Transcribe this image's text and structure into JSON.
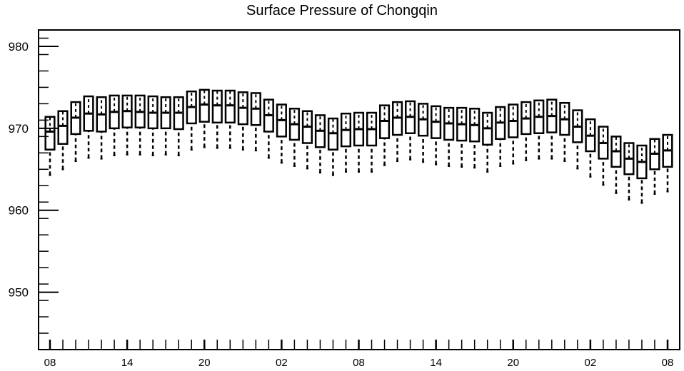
{
  "chart_data": {
    "type": "box",
    "title": "Surface Pressure of Chongqin",
    "xlabel": "",
    "ylabel": "",
    "ylim": [
      943,
      982
    ],
    "y_ticks": [
      950,
      960,
      970,
      980
    ],
    "x_tick_labels": [
      "08",
      "14",
      "20",
      "02",
      "08",
      "14",
      "20",
      "02",
      "08"
    ],
    "x_tick_positions": [
      0,
      6,
      12,
      18,
      24,
      30,
      36,
      42,
      48
    ],
    "grid": false,
    "boxes": [
      {
        "x": 0,
        "whisker_low": 964.3,
        "q1": 967.4,
        "median": 969.6,
        "q3": 971.4,
        "whisker_high": 971.4
      },
      {
        "x": 1,
        "whisker_low": 965.0,
        "q1": 968.1,
        "median": 970.3,
        "q3": 972.1,
        "whisker_high": 972.1
      },
      {
        "x": 2,
        "whisker_low": 966.0,
        "q1": 969.3,
        "median": 971.3,
        "q3": 973.2,
        "whisker_high": 973.2
      },
      {
        "x": 3,
        "whisker_low": 966.4,
        "q1": 969.7,
        "median": 971.8,
        "q3": 973.9,
        "whisker_high": 973.9
      },
      {
        "x": 4,
        "whisker_low": 966.3,
        "q1": 969.6,
        "median": 971.7,
        "q3": 973.8,
        "whisker_high": 973.8
      },
      {
        "x": 5,
        "whisker_low": 966.7,
        "q1": 970.0,
        "median": 972.0,
        "q3": 974.0,
        "whisker_high": 974.0
      },
      {
        "x": 6,
        "whisker_low": 966.8,
        "q1": 970.1,
        "median": 972.1,
        "q3": 974.0,
        "whisker_high": 974.0
      },
      {
        "x": 7,
        "whisker_low": 966.8,
        "q1": 970.1,
        "median": 972.0,
        "q3": 974.0,
        "whisker_high": 974.0
      },
      {
        "x": 8,
        "whisker_low": 966.7,
        "q1": 970.0,
        "median": 971.9,
        "q3": 973.9,
        "whisker_high": 973.9
      },
      {
        "x": 9,
        "whisker_low": 966.8,
        "q1": 970.0,
        "median": 971.9,
        "q3": 973.8,
        "whisker_high": 973.8
      },
      {
        "x": 10,
        "whisker_low": 966.7,
        "q1": 969.9,
        "median": 971.9,
        "q3": 973.8,
        "whisker_high": 973.8
      },
      {
        "x": 11,
        "whisker_low": 967.4,
        "q1": 970.6,
        "median": 972.6,
        "q3": 974.5,
        "whisker_high": 974.5
      },
      {
        "x": 12,
        "whisker_low": 967.7,
        "q1": 970.8,
        "median": 972.9,
        "q3": 974.7,
        "whisker_high": 974.7
      },
      {
        "x": 13,
        "whisker_low": 967.6,
        "q1": 970.7,
        "median": 972.8,
        "q3": 974.6,
        "whisker_high": 974.6
      },
      {
        "x": 14,
        "whisker_low": 967.6,
        "q1": 970.7,
        "median": 972.8,
        "q3": 974.6,
        "whisker_high": 974.6
      },
      {
        "x": 15,
        "whisker_low": 967.4,
        "q1": 970.5,
        "median": 972.5,
        "q3": 974.4,
        "whisker_high": 974.4
      },
      {
        "x": 16,
        "whisker_low": 967.3,
        "q1": 970.4,
        "median": 972.4,
        "q3": 974.3,
        "whisker_high": 974.3
      },
      {
        "x": 17,
        "whisker_low": 966.4,
        "q1": 969.6,
        "median": 971.6,
        "q3": 973.5,
        "whisker_high": 973.5
      },
      {
        "x": 18,
        "whisker_low": 965.8,
        "q1": 969.0,
        "median": 971.0,
        "q3": 972.9,
        "whisker_high": 972.9
      },
      {
        "x": 19,
        "whisker_low": 965.4,
        "q1": 968.6,
        "median": 970.5,
        "q3": 972.4,
        "whisker_high": 972.4
      },
      {
        "x": 20,
        "whisker_low": 965.1,
        "q1": 968.2,
        "median": 970.2,
        "q3": 972.1,
        "whisker_high": 972.1
      },
      {
        "x": 21,
        "whisker_low": 964.6,
        "q1": 967.7,
        "median": 969.7,
        "q3": 971.6,
        "whisker_high": 971.6
      },
      {
        "x": 22,
        "whisker_low": 964.3,
        "q1": 967.4,
        "median": 969.4,
        "q3": 971.2,
        "whisker_high": 971.2
      },
      {
        "x": 23,
        "whisker_low": 964.7,
        "q1": 967.8,
        "median": 969.8,
        "q3": 971.8,
        "whisker_high": 971.8
      },
      {
        "x": 24,
        "whisker_low": 964.7,
        "q1": 967.9,
        "median": 969.9,
        "q3": 971.9,
        "whisker_high": 971.9
      },
      {
        "x": 25,
        "whisker_low": 964.7,
        "q1": 967.9,
        "median": 969.9,
        "q3": 971.9,
        "whisker_high": 971.9
      },
      {
        "x": 26,
        "whisker_low": 965.5,
        "q1": 968.8,
        "median": 970.9,
        "q3": 972.8,
        "whisker_high": 972.8
      },
      {
        "x": 27,
        "whisker_low": 966.0,
        "q1": 969.2,
        "median": 971.3,
        "q3": 973.2,
        "whisker_high": 973.2
      },
      {
        "x": 28,
        "whisker_low": 966.2,
        "q1": 969.4,
        "median": 971.4,
        "q3": 973.3,
        "whisker_high": 973.3
      },
      {
        "x": 29,
        "whisker_low": 965.9,
        "q1": 969.1,
        "median": 971.1,
        "q3": 973.0,
        "whisker_high": 973.0
      },
      {
        "x": 30,
        "whisker_low": 965.6,
        "q1": 968.8,
        "median": 970.8,
        "q3": 972.7,
        "whisker_high": 972.7
      },
      {
        "x": 31,
        "whisker_low": 965.4,
        "q1": 968.6,
        "median": 970.6,
        "q3": 972.5,
        "whisker_high": 972.5
      },
      {
        "x": 32,
        "whisker_low": 965.3,
        "q1": 968.5,
        "median": 970.5,
        "q3": 972.5,
        "whisker_high": 972.5
      },
      {
        "x": 33,
        "whisker_low": 965.2,
        "q1": 968.4,
        "median": 970.4,
        "q3": 972.4,
        "whisker_high": 972.4
      },
      {
        "x": 34,
        "whisker_low": 964.7,
        "q1": 968.0,
        "median": 970.0,
        "q3": 971.9,
        "whisker_high": 971.9
      },
      {
        "x": 35,
        "whisker_low": 965.4,
        "q1": 968.7,
        "median": 970.7,
        "q3": 972.6,
        "whisker_high": 972.6
      },
      {
        "x": 36,
        "whisker_low": 965.7,
        "q1": 968.9,
        "median": 970.9,
        "q3": 972.9,
        "whisker_high": 972.9
      },
      {
        "x": 37,
        "whisker_low": 966.1,
        "q1": 969.3,
        "median": 971.2,
        "q3": 973.2,
        "whisker_high": 973.2
      },
      {
        "x": 38,
        "whisker_low": 966.3,
        "q1": 969.4,
        "median": 971.4,
        "q3": 973.4,
        "whisker_high": 973.4
      },
      {
        "x": 39,
        "whisker_low": 966.3,
        "q1": 969.5,
        "median": 971.5,
        "q3": 973.5,
        "whisker_high": 973.5
      },
      {
        "x": 40,
        "whisker_low": 966.0,
        "q1": 969.2,
        "median": 971.1,
        "q3": 973.1,
        "whisker_high": 973.1
      },
      {
        "x": 41,
        "whisker_low": 965.1,
        "q1": 968.3,
        "median": 970.2,
        "q3": 972.2,
        "whisker_high": 972.2
      },
      {
        "x": 42,
        "whisker_low": 964.1,
        "q1": 967.2,
        "median": 969.1,
        "q3": 971.1,
        "whisker_high": 971.1
      },
      {
        "x": 43,
        "whisker_low": 963.1,
        "q1": 966.3,
        "median": 968.2,
        "q3": 970.2,
        "whisker_high": 970.2
      },
      {
        "x": 44,
        "whisker_low": 962.1,
        "q1": 965.3,
        "median": 967.2,
        "q3": 969.0,
        "whisker_high": 969.0
      },
      {
        "x": 45,
        "whisker_low": 961.3,
        "q1": 964.4,
        "median": 966.3,
        "q3": 968.2,
        "whisker_high": 968.2
      },
      {
        "x": 46,
        "whisker_low": 960.9,
        "q1": 963.9,
        "median": 965.9,
        "q3": 967.9,
        "whisker_high": 967.9
      },
      {
        "x": 47,
        "whisker_low": 962.0,
        "q1": 965.0,
        "median": 966.9,
        "q3": 968.7,
        "whisker_high": 968.7
      },
      {
        "x": 48,
        "whisker_low": 962.3,
        "q1": 965.3,
        "median": 967.3,
        "q3": 969.2,
        "whisker_high": 969.2
      }
    ]
  }
}
